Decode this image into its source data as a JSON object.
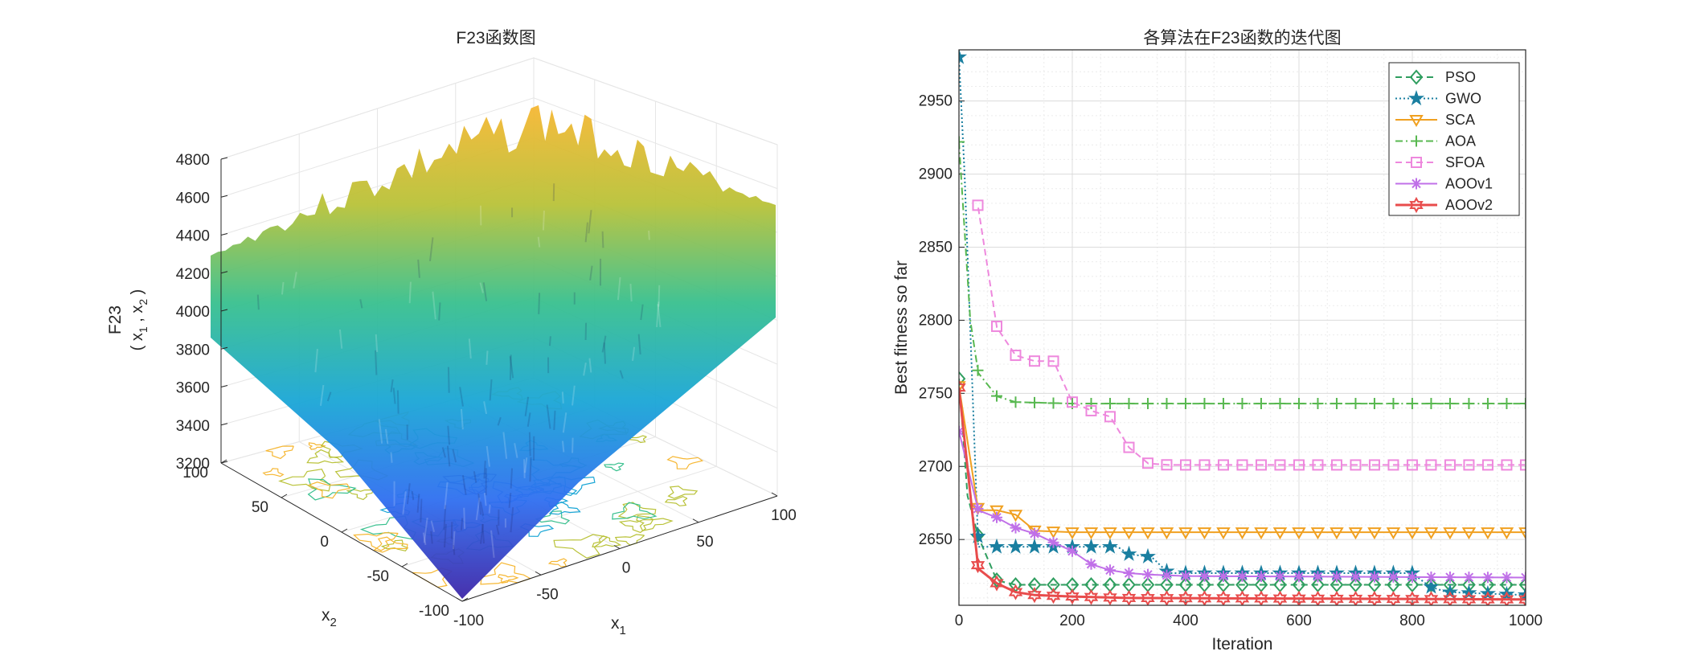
{
  "chart_data": [
    {
      "type": "surface",
      "title": "F23函数图",
      "xlabel_main": "x",
      "xlabel_sub": "1",
      "ylabel_main": "x",
      "ylabel_sub": "2",
      "zlabel_line1": "F23",
      "zlabel_line2_parts": [
        "( x",
        "1",
        " , x",
        "2",
        " )"
      ],
      "x_ticks": [
        "-100",
        "-50",
        "0",
        "50",
        "100"
      ],
      "y_ticks": [
        "-100",
        "-50",
        "0",
        "50",
        "100"
      ],
      "z_ticks": [
        "3200",
        "3400",
        "3600",
        "3800",
        "4000",
        "4200",
        "4400",
        "4600",
        "4800"
      ],
      "xlim": [
        -100,
        100
      ],
      "ylim": [
        -100,
        100
      ],
      "zlim": [
        3200,
        4800
      ],
      "grid": true,
      "colormap": "parula",
      "contour_projection": true
    },
    {
      "type": "line",
      "title": "各算法在F23函数的迭代图",
      "xlabel": "Iteration",
      "ylabel": "Best fitness so far",
      "xlim": [
        0,
        1000
      ],
      "ylim": [
        2605,
        2985
      ],
      "x_ticks": [
        "0",
        "200",
        "400",
        "600",
        "800",
        "1000"
      ],
      "y_ticks": [
        "2650",
        "2700",
        "2750",
        "2800",
        "2850",
        "2900",
        "2950"
      ],
      "grid": true,
      "legend_position": "top-right",
      "series": [
        {
          "name": "PSO",
          "color": "#2f9e5f",
          "dash": "8,5",
          "marker": "diamond",
          "points": [
            [
              0,
              2760
            ],
            [
              15,
              2680
            ],
            [
              34,
              2652
            ],
            [
              67,
              2622
            ],
            [
              100,
              2619
            ],
            [
              200,
              2619
            ],
            [
              1000,
              2619
            ]
          ]
        },
        {
          "name": "GWO",
          "color": "#1a7fa0",
          "dash": "2,3",
          "marker": "star",
          "points": [
            [
              0,
              2980
            ],
            [
              10,
              2900
            ],
            [
              34,
              2645
            ],
            [
              100,
              2645
            ],
            [
              280,
              2645
            ],
            [
              300,
              2640
            ],
            [
              340,
              2638
            ],
            [
              370,
              2627
            ],
            [
              800,
              2627
            ],
            [
              830,
              2618
            ],
            [
              860,
              2614
            ],
            [
              1000,
              2612
            ]
          ]
        },
        {
          "name": "SCA",
          "color": "#f0a020",
          "dash": "",
          "marker": "triangle-down",
          "points": [
            [
              0,
              2755
            ],
            [
              34,
              2670
            ],
            [
              67,
              2670
            ],
            [
              100,
              2667
            ],
            [
              134,
              2656
            ],
            [
              200,
              2655
            ],
            [
              1000,
              2655
            ]
          ]
        },
        {
          "name": "AOA",
          "color": "#58b850",
          "dash": "9,4,2,4",
          "marker": "plus",
          "points": [
            [
              0,
              2922
            ],
            [
              20,
              2800
            ],
            [
              34,
              2764
            ],
            [
              67,
              2748
            ],
            [
              100,
              2744
            ],
            [
              200,
              2743
            ],
            [
              1000,
              2743
            ]
          ]
        },
        {
          "name": "SFOA",
          "color": "#ee88dd",
          "dash": "8,5",
          "marker": "square",
          "points": [
            [
              34,
              2877
            ],
            [
              67,
              2795
            ],
            [
              100,
              2776
            ],
            [
              134,
              2772
            ],
            [
              167,
              2772
            ],
            [
              200,
              2744
            ],
            [
              234,
              2738
            ],
            [
              267,
              2734
            ],
            [
              300,
              2713
            ],
            [
              334,
              2702
            ],
            [
              370,
              2701
            ],
            [
              1000,
              2701
            ]
          ]
        },
        {
          "name": "AOOv1",
          "color": "#c070e8",
          "dash": "",
          "marker": "asterisk",
          "points": [
            [
              0,
              2724
            ],
            [
              34,
              2670
            ],
            [
              67,
              2665
            ],
            [
              100,
              2658
            ],
            [
              134,
              2654
            ],
            [
              167,
              2648
            ],
            [
              200,
              2642
            ],
            [
              234,
              2633
            ],
            [
              267,
              2629
            ],
            [
              300,
              2627
            ],
            [
              334,
              2626
            ],
            [
              400,
              2625
            ],
            [
              1000,
              2624
            ]
          ]
        },
        {
          "name": "AOOv2",
          "color": "#e84c4c",
          "dash": "",
          "marker": "hexagram",
          "points": [
            [
              0,
              2754
            ],
            [
              34,
              2630
            ],
            [
              67,
              2620
            ],
            [
              100,
              2614
            ],
            [
              134,
              2612
            ],
            [
              200,
              2611
            ],
            [
              300,
              2610
            ],
            [
              1000,
              2609
            ]
          ]
        }
      ]
    }
  ]
}
